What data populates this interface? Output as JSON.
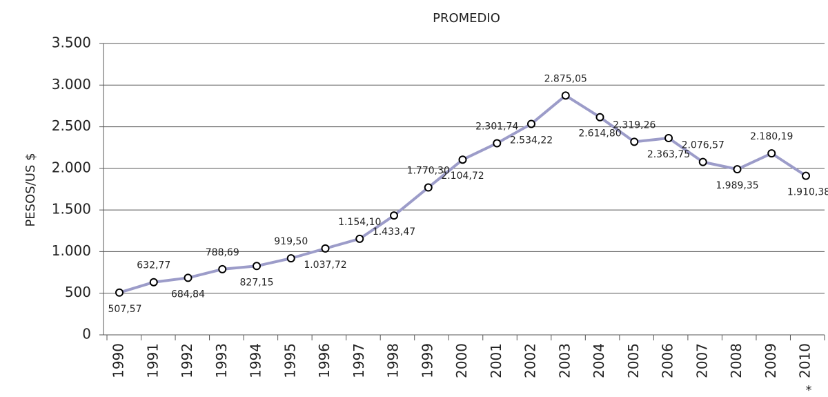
{
  "chart_data": {
    "type": "line",
    "title": "PROMEDIO",
    "y_label": "PESOS/US $",
    "note": "*",
    "categories": [
      "1990",
      "1991",
      "1992",
      "1993",
      "1994",
      "1995",
      "1996",
      "1997",
      "1998",
      "1999",
      "2000",
      "2001",
      "2002",
      "2003",
      "2004",
      "2005",
      "2006",
      "2007",
      "2008",
      "2009",
      "2010"
    ],
    "series": [
      {
        "name": "PROMEDIO",
        "color": "#9c9cc9",
        "values": [
          507.57,
          632.77,
          684.84,
          788.69,
          827.15,
          919.5,
          1037.72,
          1154.1,
          1433.47,
          1770.3,
          2104.72,
          2301.74,
          2534.22,
          2875.05,
          2614.8,
          2319.26,
          2363.75,
          2076.57,
          1989.35,
          2180.19,
          1910.38
        ],
        "value_labels": [
          "507,57",
          "632,77",
          "684,84",
          "788,69",
          "827,15",
          "919,50",
          "1.037,72",
          "1.154,10",
          "1.433,47",
          "1.770,30",
          "2.104,72",
          "2.301,74",
          "2.534,22",
          "2.875,05",
          "2.614,80",
          "2.319,26",
          "2.363,75",
          "2.076,57",
          "1.989,35",
          "2.180,19",
          "1.910,38"
        ]
      }
    ],
    "ylim": [
      0,
      3500
    ],
    "yticks": [
      0,
      500,
      {
        "value": 1000,
        "label": "1.000"
      },
      {
        "value": 1500,
        "label": "1.500"
      },
      {
        "value": 2000,
        "label": "2.000"
      },
      {
        "value": 2500,
        "label": "2.500"
      },
      {
        "value": 3000,
        "label": "3.000"
      },
      {
        "value": 3500,
        "label": "3.500"
      }
    ],
    "grid": true
  }
}
